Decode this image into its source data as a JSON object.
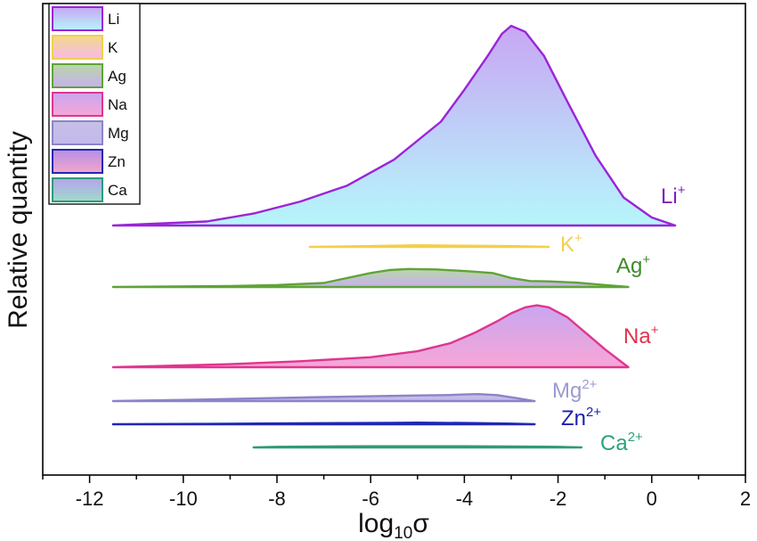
{
  "chart_data": {
    "type": "area",
    "xlabel": {
      "base": "log",
      "sub": "10",
      "symbol": "σ"
    },
    "ylabel": "Relative quantity",
    "xlim": [
      -13,
      2
    ],
    "x_ticks": [
      -12,
      -10,
      -8,
      -6,
      -4,
      -2,
      0,
      2
    ],
    "y_ticks_shown": false,
    "grid": false,
    "legend": {
      "position": "top-left"
    },
    "series": [
      {
        "name": "Li",
        "label": "Li",
        "charge": "+",
        "color": "#9a24d8",
        "fill_top": "#c8a6f4",
        "fill_bottom": "#b6f6fb",
        "x": [
          -11.5,
          -9.5,
          -8.5,
          -7.5,
          -6.5,
          -5.5,
          -4.5,
          -4.0,
          -3.5,
          -3.2,
          -3.0,
          -2.7,
          -2.3,
          -1.8,
          -1.2,
          -0.6,
          0.0,
          0.5
        ],
        "y": [
          0.0,
          0.02,
          0.06,
          0.12,
          0.2,
          0.33,
          0.52,
          0.68,
          0.85,
          0.96,
          1.0,
          0.97,
          0.85,
          0.62,
          0.35,
          0.14,
          0.04,
          0.0
        ]
      },
      {
        "name": "K",
        "label": "K",
        "charge": "+",
        "color": "#f2cf4f",
        "fill_top": "#f3d98a",
        "fill_bottom": "#f7b9e8",
        "x": [
          -7.3,
          -6.0,
          -5.0,
          -4.0,
          -3.0,
          -2.2
        ],
        "y": [
          0.0,
          0.004,
          0.008,
          0.006,
          0.004,
          0.0
        ]
      },
      {
        "name": "Ag",
        "label": "Ag",
        "charge": "+",
        "color": "#5fa437",
        "fill_top": "#b9d7a6",
        "fill_bottom": "#c7b0ee",
        "x": [
          -11.5,
          -9.0,
          -8.0,
          -7.0,
          -6.6,
          -6.0,
          -5.6,
          -5.2,
          -4.6,
          -4.0,
          -3.4,
          -3.0,
          -2.6,
          -2.2,
          -1.6,
          -1.0,
          -0.5
        ],
        "y": [
          0.0,
          0.005,
          0.01,
          0.02,
          0.04,
          0.07,
          0.085,
          0.09,
          0.088,
          0.08,
          0.07,
          0.045,
          0.03,
          0.028,
          0.022,
          0.01,
          0.0
        ]
      },
      {
        "name": "Na",
        "label": "Na",
        "charge": "+",
        "color": "#e0358e",
        "fill_top": "#c8a6f0",
        "fill_bottom": "#f7a6d6",
        "x": [
          -11.5,
          -9.0,
          -7.5,
          -6.0,
          -5.0,
          -4.3,
          -3.8,
          -3.3,
          -3.0,
          -2.7,
          -2.45,
          -2.2,
          -1.8,
          -1.4,
          -1.0,
          -0.5
        ],
        "y": [
          0.0,
          0.015,
          0.03,
          0.05,
          0.08,
          0.12,
          0.17,
          0.23,
          0.27,
          0.3,
          0.31,
          0.3,
          0.25,
          0.17,
          0.09,
          0.0
        ]
      },
      {
        "name": "Mg",
        "label": "Mg",
        "charge": "2+",
        "color": "#8a84c8",
        "fill_top": "#c6c0e6",
        "fill_bottom": "#c4b8ec",
        "x": [
          -11.5,
          -10.0,
          -8.5,
          -7.0,
          -6.0,
          -5.0,
          -4.4,
          -4.0,
          -3.7,
          -3.3,
          -2.9,
          -2.5
        ],
        "y": [
          0.0,
          0.006,
          0.013,
          0.02,
          0.024,
          0.028,
          0.03,
          0.033,
          0.035,
          0.03,
          0.015,
          0.0
        ]
      },
      {
        "name": "Zn",
        "label": "Zn",
        "charge": "2+",
        "color": "#1f27b4",
        "fill_top": "#b68de8",
        "fill_bottom": "#f1a8c9",
        "x": [
          -11.5,
          -9.5,
          -8.0,
          -6.5,
          -5.5,
          -5.0,
          -4.5,
          -3.8,
          -3.0,
          -2.5
        ],
        "y": [
          0.0,
          0.002,
          0.004,
          0.006,
          0.007,
          0.008,
          0.007,
          0.006,
          0.003,
          0.0
        ]
      },
      {
        "name": "Ca",
        "label": "Ca",
        "charge": "2+",
        "color": "#2f9a7a",
        "fill_top": "#b6a2ee",
        "fill_bottom": "#9fdcc9",
        "x": [
          -8.5,
          -8.0,
          -7.0,
          -6.0,
          -5.0,
          -4.0,
          -3.0,
          -2.0,
          -1.5
        ],
        "y": [
          0.0,
          0.003,
          0.005,
          0.006,
          0.006,
          0.006,
          0.005,
          0.003,
          0.0
        ]
      }
    ]
  },
  "legend_entries": [
    "Li",
    "K",
    "Ag",
    "Na",
    "Mg",
    "Zn",
    "Ca"
  ]
}
